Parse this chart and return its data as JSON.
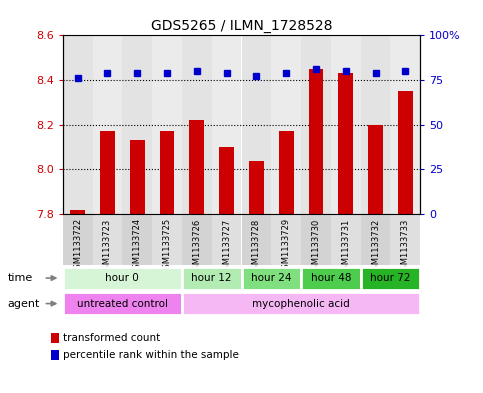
{
  "title": "GDS5265 / ILMN_1728528",
  "samples": [
    "GSM1133722",
    "GSM1133723",
    "GSM1133724",
    "GSM1133725",
    "GSM1133726",
    "GSM1133727",
    "GSM1133728",
    "GSM1133729",
    "GSM1133730",
    "GSM1133731",
    "GSM1133732",
    "GSM1133733"
  ],
  "transformed_counts": [
    7.82,
    8.17,
    8.13,
    8.17,
    8.22,
    8.1,
    8.04,
    8.17,
    8.45,
    8.43,
    8.2,
    8.35
  ],
  "percentile_ranks": [
    76,
    79,
    79,
    79,
    80,
    79,
    77,
    79,
    81,
    80,
    79,
    80
  ],
  "ymin": 7.8,
  "ymax": 8.6,
  "yticks_left": [
    7.8,
    8.0,
    8.2,
    8.4,
    8.6
  ],
  "yticks_right": [
    0,
    25,
    50,
    75,
    100
  ],
  "bar_color": "#cc0000",
  "dot_color": "#0000cc",
  "time_groups": [
    {
      "label": "hour 0",
      "start": 0,
      "end": 4,
      "color": "#d6f5d6"
    },
    {
      "label": "hour 12",
      "start": 4,
      "end": 6,
      "color": "#b3ecb3"
    },
    {
      "label": "hour 24",
      "start": 6,
      "end": 8,
      "color": "#80e080"
    },
    {
      "label": "hour 48",
      "start": 8,
      "end": 10,
      "color": "#4dcc4d"
    },
    {
      "label": "hour 72",
      "start": 10,
      "end": 12,
      "color": "#26b326"
    }
  ],
  "agent_groups": [
    {
      "label": "untreated control",
      "start": 0,
      "end": 4,
      "color": "#ee82ee"
    },
    {
      "label": "mycophenolic acid",
      "start": 4,
      "end": 12,
      "color": "#f5b8f5"
    }
  ],
  "legend_red": "transformed count",
  "legend_blue": "percentile rank within the sample",
  "time_label": "time",
  "agent_label": "agent",
  "col_bg_odd": "#c8c8c8",
  "col_bg_even": "#d8d8d8"
}
